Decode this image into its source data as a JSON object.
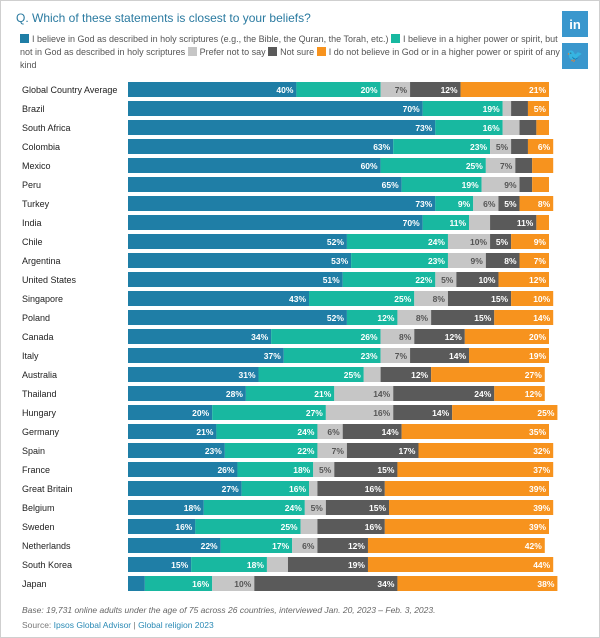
{
  "title": "Q. Which of these statements is closest to your beliefs?",
  "social": {
    "linkedin": "in",
    "twitter": "🐦"
  },
  "legend": [
    {
      "label": "I believe in God as described in holy scriptures (e.g., the Bible, the Quran, the Torah, etc.)",
      "color": "#1f7ea6"
    },
    {
      "label": "I believe in a higher power or spirit, but not in God as described in holy scriptures",
      "color": "#18b8a0"
    },
    {
      "label": "Prefer not to say",
      "color": "#c6c6c6"
    },
    {
      "label": "Not sure",
      "color": "#5a5a5a"
    },
    {
      "label": "I do not believe in God or in a higher power or spirit of any kind",
      "color": "#f7931e"
    }
  ],
  "chart_data": {
    "type": "bar",
    "orientation": "horizontal",
    "stacked": true,
    "normalized": true,
    "unit": "%",
    "categories": [
      "Global Country Average",
      "Brazil",
      "South Africa",
      "Colombia",
      "Mexico",
      "Peru",
      "Turkey",
      "India",
      "Chile",
      "Argentina",
      "United States",
      "Singapore",
      "Poland",
      "Canada",
      "Italy",
      "Australia",
      "Thailand",
      "Hungary",
      "Germany",
      "Spain",
      "France",
      "Great Britain",
      "Belgium",
      "Sweden",
      "Netherlands",
      "South Korea",
      "Japan"
    ],
    "series": [
      {
        "name": "I believe in God as described in holy scriptures",
        "color": "#1f7ea6",
        "text_color": "#ffffff",
        "values": [
          40,
          70,
          73,
          63,
          60,
          65,
          73,
          70,
          52,
          53,
          51,
          43,
          52,
          34,
          37,
          31,
          28,
          20,
          21,
          23,
          26,
          27,
          18,
          16,
          22,
          15,
          4
        ]
      },
      {
        "name": "I believe in a higher power or spirit, but not in God as described in holy scriptures",
        "color": "#18b8a0",
        "text_color": "#ffffff",
        "values": [
          20,
          19,
          16,
          23,
          25,
          19,
          9,
          11,
          24,
          23,
          22,
          25,
          12,
          26,
          23,
          25,
          21,
          27,
          24,
          22,
          18,
          16,
          24,
          25,
          17,
          18,
          16
        ]
      },
      {
        "name": "Prefer not to say",
        "color": "#c6c6c6",
        "text_color": "#555555",
        "values": [
          7,
          2,
          4,
          5,
          7,
          9,
          6,
          5,
          10,
          9,
          5,
          8,
          8,
          8,
          7,
          4,
          14,
          16,
          6,
          7,
          5,
          2,
          5,
          4,
          6,
          5,
          10
        ]
      },
      {
        "name": "Not sure",
        "color": "#5a5a5a",
        "text_color": "#ffffff",
        "values": [
          12,
          4,
          4,
          4,
          4,
          3,
          5,
          11,
          5,
          8,
          10,
          15,
          15,
          12,
          14,
          12,
          24,
          14,
          14,
          17,
          15,
          16,
          15,
          16,
          12,
          19,
          34
        ]
      },
      {
        "name": "I do not believe in God or in a higher power or spirit of any kind",
        "color": "#f7931e",
        "text_color": "#ffffff",
        "values": [
          21,
          5,
          3,
          6,
          5,
          4,
          8,
          3,
          9,
          7,
          12,
          10,
          14,
          20,
          19,
          27,
          12,
          25,
          35,
          32,
          37,
          39,
          39,
          39,
          42,
          44,
          38
        ]
      }
    ],
    "labels": [
      [
        "40%",
        "20%",
        "7%",
        "12%",
        "21%"
      ],
      [
        "70%",
        "19%",
        "",
        "",
        "5%"
      ],
      [
        "73%",
        "16%",
        "",
        "",
        ""
      ],
      [
        "63%",
        "23%",
        "5%",
        "",
        "6%"
      ],
      [
        "60%",
        "25%",
        "7%",
        "",
        ""
      ],
      [
        "65%",
        "19%",
        "9%",
        "",
        ""
      ],
      [
        "73%",
        "9%",
        "6%",
        "5%",
        "8%"
      ],
      [
        "70%",
        "11%",
        "",
        "11%",
        ""
      ],
      [
        "52%",
        "24%",
        "10%",
        "5%",
        "9%"
      ],
      [
        "53%",
        "23%",
        "9%",
        "8%",
        "7%"
      ],
      [
        "51%",
        "22%",
        "5%",
        "10%",
        "12%"
      ],
      [
        "43%",
        "25%",
        "8%",
        "15%",
        "10%"
      ],
      [
        "52%",
        "12%",
        "8%",
        "15%",
        "14%"
      ],
      [
        "34%",
        "26%",
        "8%",
        "12%",
        "20%"
      ],
      [
        "37%",
        "23%",
        "7%",
        "14%",
        "19%"
      ],
      [
        "31%",
        "25%",
        "",
        "12%",
        "27%"
      ],
      [
        "28%",
        "21%",
        "14%",
        "24%",
        "12%"
      ],
      [
        "20%",
        "27%",
        "16%",
        "14%",
        "25%"
      ],
      [
        "21%",
        "24%",
        "6%",
        "14%",
        "35%"
      ],
      [
        "23%",
        "22%",
        "7%",
        "17%",
        "32%"
      ],
      [
        "26%",
        "18%",
        "5%",
        "15%",
        "37%"
      ],
      [
        "27%",
        "16%",
        "",
        "16%",
        "39%"
      ],
      [
        "18%",
        "24%",
        "5%",
        "15%",
        "39%"
      ],
      [
        "16%",
        "25%",
        "",
        "16%",
        "39%"
      ],
      [
        "22%",
        "17%",
        "6%",
        "12%",
        "42%"
      ],
      [
        "15%",
        "18%",
        "",
        "19%",
        "44%"
      ],
      [
        "",
        "16%",
        "10%",
        "34%",
        "38%"
      ]
    ],
    "xlim": [
      0,
      100
    ]
  },
  "footnote": {
    "base": "Base: 19,731 online adults under the age of 75 across 26 countries, interviewed Jan. 20, 2023 – Feb. 3, 2023.",
    "source_prefix": "Source: ",
    "source_link1": "Ipsos Global Advisor",
    "source_sep": " | ",
    "source_link2": "Global religion 2023"
  }
}
